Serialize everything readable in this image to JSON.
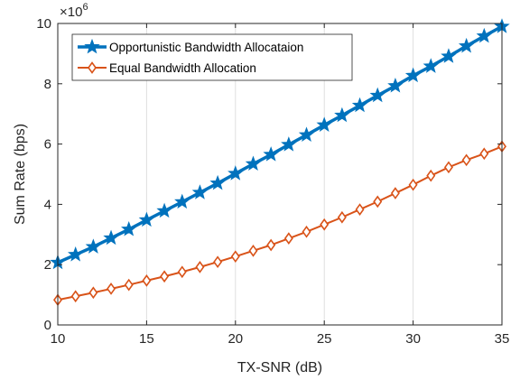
{
  "chart_data": {
    "type": "line",
    "title": "",
    "xlabel": "TX-SNR (dB)",
    "ylabel": "Sum Rate (bps)",
    "xlim": [
      10,
      35
    ],
    "ylim": [
      0,
      10
    ],
    "xticks": [
      10,
      15,
      20,
      25,
      30,
      35
    ],
    "yticks": [
      0,
      2,
      4,
      6,
      8,
      10
    ],
    "y_multiplier": "×10",
    "y_multiplier_exp": "6",
    "grid": "vertical",
    "legend_position": "top-left",
    "x": [
      10,
      11,
      12,
      13,
      14,
      15,
      16,
      17,
      18,
      19,
      20,
      21,
      22,
      23,
      24,
      25,
      26,
      27,
      28,
      29,
      30,
      31,
      32,
      33,
      34,
      35
    ],
    "series": [
      {
        "name": "Opportunistic Bandwidth Allocataion",
        "color": "#0072BD",
        "marker": "star",
        "values": [
          2.07,
          2.33,
          2.59,
          2.88,
          3.17,
          3.48,
          3.78,
          4.08,
          4.39,
          4.7,
          5.02,
          5.34,
          5.65,
          5.98,
          6.3,
          6.63,
          6.95,
          7.28,
          7.61,
          7.93,
          8.27,
          8.58,
          8.91,
          9.25,
          9.58,
          9.9
        ]
      },
      {
        "name": "Equal Bandwidth Allocation",
        "color": "#D95319",
        "marker": "diamond",
        "values": [
          0.83,
          0.95,
          1.07,
          1.2,
          1.33,
          1.47,
          1.61,
          1.76,
          1.92,
          2.09,
          2.27,
          2.46,
          2.65,
          2.87,
          3.09,
          3.33,
          3.57,
          3.83,
          4.09,
          4.37,
          4.65,
          4.95,
          5.23,
          5.47,
          5.68,
          5.92
        ]
      }
    ]
  }
}
